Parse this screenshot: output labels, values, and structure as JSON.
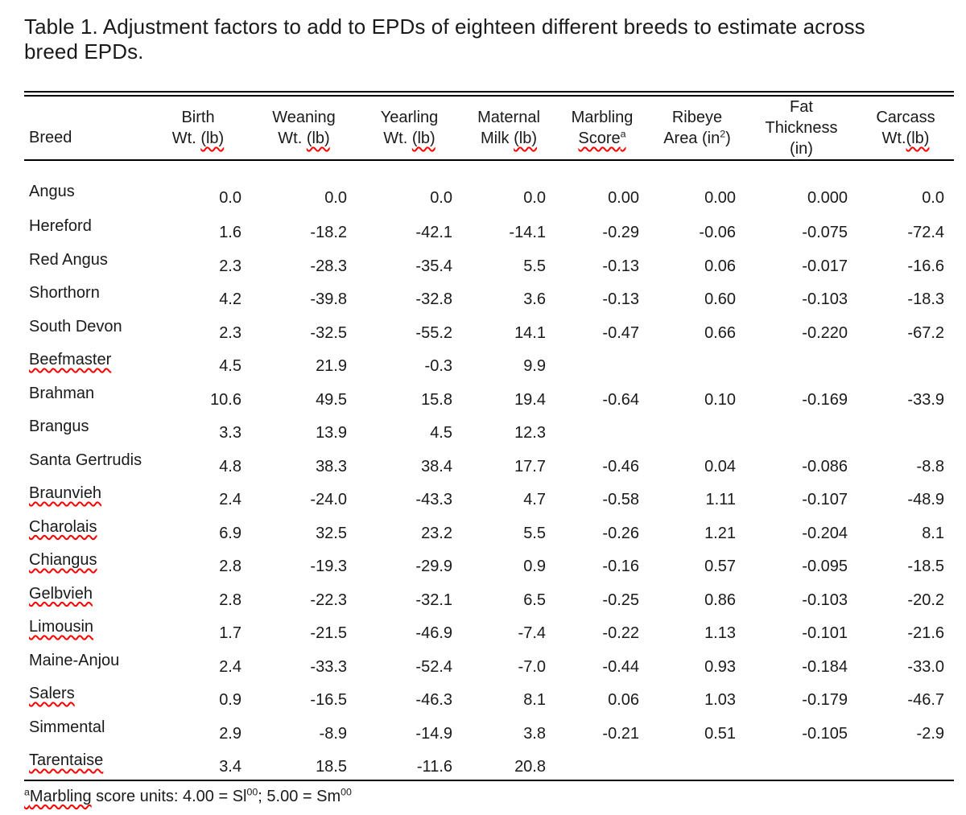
{
  "title": "Table 1. Adjustment factors to add to EPDs of eighteen different breeds to estimate across breed EPDs.",
  "colors": {
    "spellcheck_underline": "#ff0000",
    "text": "#1a1a1a",
    "background": "#ffffff",
    "rule": "#000000"
  },
  "table": {
    "columns": [
      {
        "id": "breed",
        "lines": [
          [
            {
              "t": "Breed"
            }
          ]
        ]
      },
      {
        "id": "birth-wt",
        "lines": [
          [
            {
              "t": "Birth"
            }
          ],
          [
            {
              "t": "Wt. "
            },
            {
              "t": "(lb)",
              "wavy": true
            }
          ]
        ]
      },
      {
        "id": "weaning-wt",
        "lines": [
          [
            {
              "t": "Weaning"
            }
          ],
          [
            {
              "t": "Wt. "
            },
            {
              "t": "(lb)",
              "wavy": true
            }
          ]
        ]
      },
      {
        "id": "yearling-wt",
        "lines": [
          [
            {
              "t": "Yearling"
            }
          ],
          [
            {
              "t": "Wt. "
            },
            {
              "t": "(lb)",
              "wavy": true
            }
          ]
        ]
      },
      {
        "id": "maternal-milk",
        "lines": [
          [
            {
              "t": "Maternal"
            }
          ],
          [
            {
              "t": "Milk "
            },
            {
              "t": "(lb)",
              "wavy": true
            }
          ]
        ]
      },
      {
        "id": "marbling-score",
        "lines": [
          [
            {
              "t": "Marbling"
            }
          ],
          [
            {
              "t": "Score",
              "wavy": true
            },
            {
              "t": "a",
              "sup": true,
              "wavy": true
            }
          ]
        ]
      },
      {
        "id": "ribeye-area",
        "lines": [
          [
            {
              "t": "Ribeye"
            }
          ],
          [
            {
              "t": "Area (in"
            },
            {
              "t": "2",
              "sup": true
            },
            {
              "t": ")"
            }
          ]
        ]
      },
      {
        "id": "fat-thickness",
        "lines": [
          [
            {
              "t": "Fat"
            }
          ],
          [
            {
              "t": "Thickness"
            }
          ],
          [
            {
              "t": "(in)"
            }
          ]
        ]
      },
      {
        "id": "carcass-wt",
        "lines": [
          [
            {
              "t": "Carcass"
            }
          ],
          [
            {
              "t": "Wt."
            },
            {
              "t": "(lb)",
              "wavy": true
            }
          ]
        ]
      }
    ],
    "rows": [
      {
        "breed": "Angus",
        "misspelled": false,
        "values": [
          "0.0",
          "0.0",
          "0.0",
          "0.0",
          "0.00",
          "0.00",
          "0.000",
          "0.0"
        ]
      },
      {
        "breed": "Hereford",
        "misspelled": false,
        "values": [
          "1.6",
          "-18.2",
          "-42.1",
          "-14.1",
          "-0.29",
          "-0.06",
          "-0.075",
          "-72.4"
        ]
      },
      {
        "breed": "Red Angus",
        "misspelled": false,
        "values": [
          "2.3",
          "-28.3",
          "-35.4",
          "5.5",
          "-0.13",
          "0.06",
          "-0.017",
          "-16.6"
        ]
      },
      {
        "breed": "Shorthorn",
        "misspelled": false,
        "values": [
          "4.2",
          "-39.8",
          "-32.8",
          "3.6",
          "-0.13",
          "0.60",
          "-0.103",
          "-18.3"
        ]
      },
      {
        "breed": "South Devon",
        "misspelled": false,
        "values": [
          "2.3",
          "-32.5",
          "-55.2",
          "14.1",
          "-0.47",
          "0.66",
          "-0.220",
          "-67.2"
        ]
      },
      {
        "breed": "Beefmaster",
        "misspelled": true,
        "values": [
          "4.5",
          "21.9",
          "-0.3",
          "9.9",
          "",
          "",
          "",
          ""
        ]
      },
      {
        "breed": "Brahman",
        "misspelled": false,
        "values": [
          "10.6",
          "49.5",
          "15.8",
          "19.4",
          "-0.64",
          "0.10",
          "-0.169",
          "-33.9"
        ]
      },
      {
        "breed": "Brangus",
        "misspelled": false,
        "values": [
          "3.3",
          "13.9",
          "4.5",
          "12.3",
          "",
          "",
          "",
          ""
        ]
      },
      {
        "breed": "Santa Gertrudis",
        "misspelled": false,
        "values": [
          "4.8",
          "38.3",
          "38.4",
          "17.7",
          "-0.46",
          "0.04",
          "-0.086",
          "-8.8"
        ]
      },
      {
        "breed": "Braunvieh",
        "misspelled": true,
        "values": [
          "2.4",
          "-24.0",
          "-43.3",
          "4.7",
          "-0.58",
          "1.11",
          "-0.107",
          "-48.9"
        ]
      },
      {
        "breed": "Charolais",
        "misspelled": true,
        "values": [
          "6.9",
          "32.5",
          "23.2",
          "5.5",
          "-0.26",
          "1.21",
          "-0.204",
          "8.1"
        ]
      },
      {
        "breed": "Chiangus",
        "misspelled": true,
        "values": [
          "2.8",
          "-19.3",
          "-29.9",
          "0.9",
          "-0.16",
          "0.57",
          "-0.095",
          "-18.5"
        ]
      },
      {
        "breed": "Gelbvieh",
        "misspelled": true,
        "values": [
          "2.8",
          "-22.3",
          "-32.1",
          "6.5",
          "-0.25",
          "0.86",
          "-0.103",
          "-20.2"
        ]
      },
      {
        "breed": "Limousin",
        "misspelled": true,
        "values": [
          "1.7",
          "-21.5",
          "-46.9",
          "-7.4",
          "-0.22",
          "1.13",
          "-0.101",
          "-21.6"
        ]
      },
      {
        "breed": "Maine-Anjou",
        "misspelled": false,
        "values": [
          "2.4",
          "-33.3",
          "-52.4",
          "-7.0",
          "-0.44",
          "0.93",
          "-0.184",
          "-33.0"
        ]
      },
      {
        "breed": "Salers",
        "misspelled": true,
        "values": [
          "0.9",
          "-16.5",
          "-46.3",
          "8.1",
          "0.06",
          "1.03",
          "-0.179",
          "-46.7"
        ]
      },
      {
        "breed": "Simmental",
        "misspelled": false,
        "values": [
          "2.9",
          "-8.9",
          "-14.9",
          "3.8",
          "-0.21",
          "0.51",
          "-0.105",
          "-2.9"
        ]
      },
      {
        "breed": "Tarentaise",
        "misspelled": true,
        "values": [
          "3.4",
          "18.5",
          "-11.6",
          "20.8",
          "",
          "",
          "",
          ""
        ]
      }
    ]
  },
  "footnote": {
    "segments": [
      {
        "t": "a",
        "sup": true,
        "wavy": true
      },
      {
        "t": "Marbling",
        "wavy": true
      },
      {
        "t": " score units: 4.00 = Sl"
      },
      {
        "t": "00",
        "sup": true
      },
      {
        "t": "; 5.00 = Sm"
      },
      {
        "t": "00",
        "sup": true
      }
    ]
  }
}
